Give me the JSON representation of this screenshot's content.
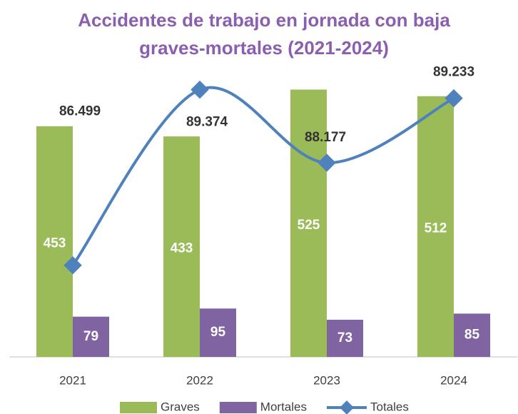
{
  "chart_data": {
    "type": "bar",
    "title": [
      "Accidentes de trabajo en jornada con baja",
      "graves-mortales (2021-2024)"
    ],
    "categories": [
      "2021",
      "2022",
      "2023",
      "2024"
    ],
    "ylim": [
      0,
      600
    ],
    "y2lim": [
      85000,
      90000
    ],
    "series": [
      {
        "name": "Graves",
        "color": "#9bbb59",
        "type": "bar",
        "values": [
          453,
          433,
          525,
          512
        ]
      },
      {
        "name": "Mortales",
        "color": "#8064a2",
        "type": "bar",
        "values": [
          79,
          95,
          73,
          85
        ]
      },
      {
        "name": "Totales",
        "color": "#4f81bd",
        "type": "line",
        "axis": "y2",
        "values": [
          86499,
          89374,
          88177,
          89233
        ],
        "value_labels": [
          "86.499",
          "89.374",
          "88.177",
          "89.233"
        ]
      }
    ],
    "legend": "bottom"
  }
}
